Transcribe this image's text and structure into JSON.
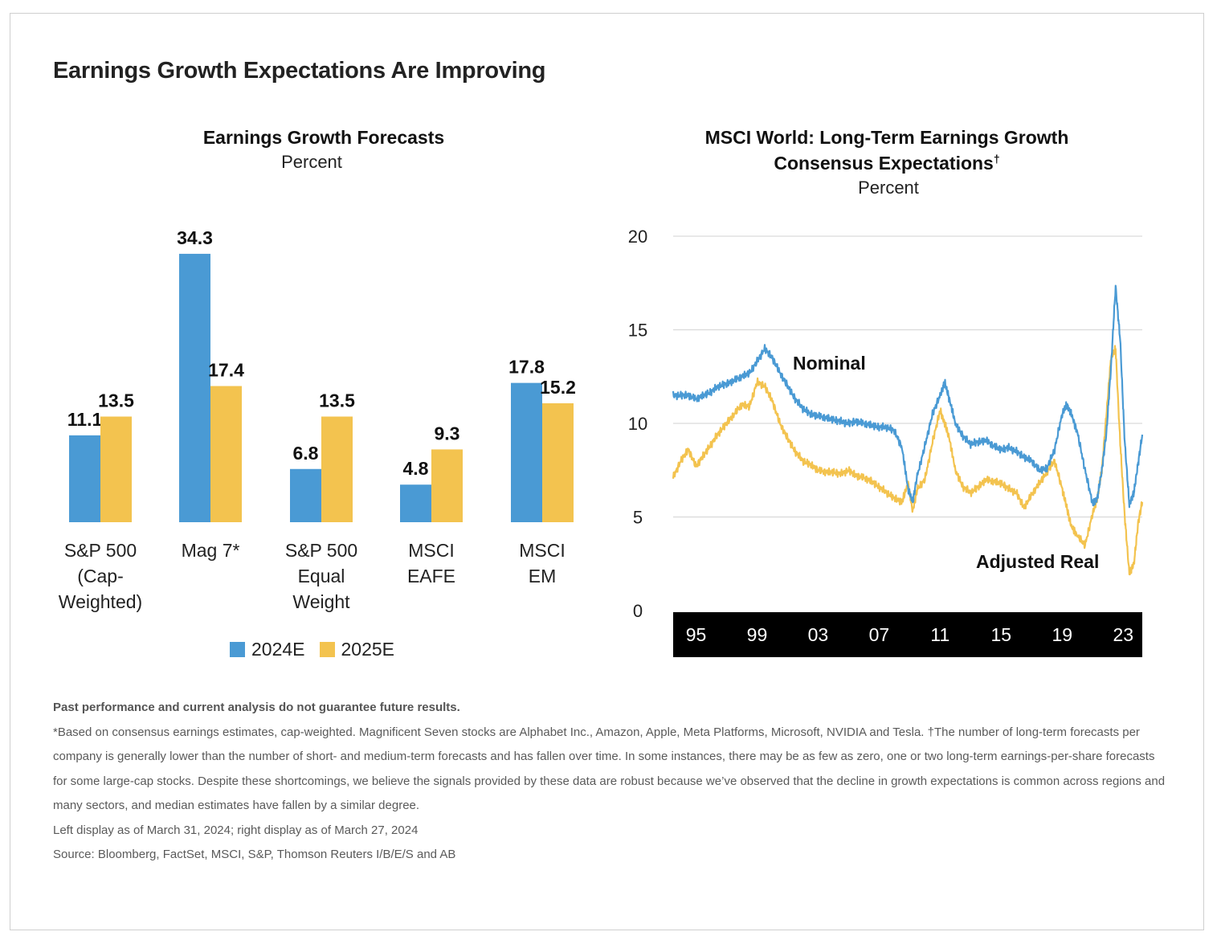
{
  "page": {
    "title": "Earnings Growth Expectations Are Improving"
  },
  "left_chart_header": {
    "title": "Earnings Growth Forecasts",
    "subtitle": "Percent"
  },
  "right_chart_header": {
    "title_line1": "MSCI World: Long-Term Earnings Growth",
    "title_line2": "Consensus Expectations",
    "title_mark": "†",
    "subtitle": "Percent"
  },
  "legend": {
    "series1": "2024E",
    "series2": "2025E"
  },
  "colors": {
    "blue": "#4a9ad4",
    "yellow": "#f3c34f",
    "axis_band": "#000000",
    "grid": "#d9d9d9"
  },
  "notes": {
    "disclaimer": "Past performance and current analysis do not guarantee future results.",
    "footnote": "*Based on consensus earnings estimates, cap-weighted. Magnificent Seven stocks are Alphabet Inc., Amazon, Apple, Meta Platforms, Microsoft, NVIDIA and Tesla. †The number of long-term forecasts per company is generally lower than the number of short- and medium-term forecasts and has fallen over time. In some instances, there may be as few as zero, one or two long-term earnings-per-share forecasts for some large-cap stocks. Despite these shortcomings, we believe the signals provided by these data are robust because we’ve observed that the decline in growth expectations is common across regions and many sectors, and median estimates have fallen by a similar degree.",
    "dates": "Left display as of March 31, 2024; right display as of March 27, 2024",
    "source": "Source: Bloomberg, FactSet, MSCI, S&P, Thomson Reuters I/B/E/S and AB"
  },
  "chart_data": [
    {
      "type": "bar",
      "title": "Earnings Growth Forecasts",
      "subtitle": "Percent",
      "categories": [
        [
          "S&P 500",
          "(Cap-",
          "Weighted)"
        ],
        [
          "Mag 7*"
        ],
        [
          "S&P 500",
          "Equal",
          "Weight"
        ],
        [
          "MSCI",
          "EAFE"
        ],
        [
          "MSCI",
          "EM"
        ]
      ],
      "series": [
        {
          "name": "2024E",
          "values": [
            11.1,
            34.3,
            6.8,
            4.8,
            17.8
          ],
          "labels": [
            "11.1",
            "34.3",
            "6.8",
            "4.8",
            "17.8"
          ]
        },
        {
          "name": "2025E",
          "values": [
            13.5,
            17.4,
            13.5,
            9.3,
            15.2
          ],
          "labels": [
            "13.5",
            "17.4",
            "13.5",
            "9.3",
            "15.2"
          ]
        }
      ],
      "legend": "bottom"
    },
    {
      "type": "line",
      "title": "MSCI World: Long-Term Earnings Growth Consensus Expectations†",
      "subtitle": "Percent",
      "x_ticks": [
        1995,
        1999,
        2003,
        2007,
        2011,
        2015,
        2019,
        2023
      ],
      "x_tick_labels": [
        "95",
        "99",
        "03",
        "07",
        "11",
        "15",
        "19",
        "23"
      ],
      "xlim": [
        1993.5,
        2024.25
      ],
      "y_ticks": [
        0,
        5,
        10,
        15,
        20
      ],
      "ylim": [
        0,
        20
      ],
      "grid": true,
      "series": [
        {
          "name": "Nominal",
          "x": [
            1993.5,
            1994.0,
            1994.5,
            1995.0,
            1995.5,
            1996.0,
            1996.5,
            1997.0,
            1997.5,
            1998.0,
            1998.5,
            1999.0,
            1999.5,
            2000.0,
            2000.5,
            2001.0,
            2001.5,
            2002.0,
            2002.5,
            2003.0,
            2003.5,
            2004.0,
            2004.5,
            2005.0,
            2005.5,
            2006.0,
            2006.5,
            2007.0,
            2007.5,
            2008.0,
            2008.5,
            2008.9,
            2009.2,
            2009.5,
            2010.0,
            2010.5,
            2011.0,
            2011.3,
            2011.6,
            2012.0,
            2012.5,
            2013.0,
            2013.5,
            2014.0,
            2014.5,
            2015.0,
            2015.5,
            2016.0,
            2016.5,
            2017.0,
            2017.5,
            2018.0,
            2018.5,
            2019.0,
            2019.3,
            2019.6,
            2020.0,
            2020.5,
            2021.0,
            2021.3,
            2021.6,
            2021.9,
            2022.2,
            2022.5,
            2022.8,
            2023.1,
            2023.4,
            2023.7,
            2024.0,
            2024.25
          ],
          "values": [
            11.5,
            11.5,
            11.5,
            11.3,
            11.5,
            11.7,
            12.0,
            12.1,
            12.3,
            12.5,
            12.7,
            13.3,
            14.0,
            13.5,
            12.7,
            12.0,
            11.3,
            10.8,
            10.5,
            10.4,
            10.3,
            10.2,
            10.1,
            10.0,
            10.1,
            10.0,
            9.9,
            9.8,
            9.8,
            9.6,
            8.7,
            6.5,
            5.8,
            7.2,
            8.8,
            10.5,
            11.5,
            12.2,
            11.3,
            10.0,
            9.3,
            8.9,
            9.0,
            9.1,
            8.8,
            8.6,
            8.7,
            8.5,
            8.2,
            8.0,
            7.5,
            7.6,
            8.6,
            10.5,
            11.0,
            10.5,
            9.5,
            7.5,
            5.7,
            6.0,
            7.5,
            9.5,
            13.0,
            17.3,
            14.5,
            9.0,
            5.7,
            6.3,
            8.0,
            9.4
          ]
        },
        {
          "name": "Adjusted Real",
          "x": [
            1993.5,
            1994.0,
            1994.5,
            1995.0,
            1995.5,
            1996.0,
            1996.5,
            1997.0,
            1997.5,
            1998.0,
            1998.5,
            1999.0,
            1999.5,
            2000.0,
            2000.5,
            2001.0,
            2001.5,
            2002.0,
            2002.5,
            2003.0,
            2003.5,
            2004.0,
            2004.5,
            2005.0,
            2005.5,
            2006.0,
            2006.5,
            2007.0,
            2007.5,
            2008.0,
            2008.5,
            2008.9,
            2009.2,
            2009.5,
            2010.0,
            2010.5,
            2011.0,
            2011.3,
            2011.6,
            2012.0,
            2012.5,
            2013.0,
            2013.5,
            2014.0,
            2014.5,
            2015.0,
            2015.5,
            2016.0,
            2016.5,
            2017.0,
            2017.5,
            2018.0,
            2018.5,
            2019.0,
            2019.3,
            2019.6,
            2020.0,
            2020.5,
            2021.0,
            2021.3,
            2021.6,
            2021.9,
            2022.2,
            2022.5,
            2022.8,
            2023.1,
            2023.4,
            2023.7,
            2024.0,
            2024.25
          ],
          "values": [
            7.1,
            8.0,
            8.6,
            7.7,
            8.3,
            8.9,
            9.5,
            10.0,
            10.5,
            11.0,
            10.9,
            12.2,
            12.0,
            11.2,
            10.0,
            9.2,
            8.5,
            8.0,
            7.8,
            7.5,
            7.4,
            7.4,
            7.3,
            7.5,
            7.2,
            7.1,
            6.9,
            6.6,
            6.3,
            6.0,
            5.8,
            6.8,
            5.3,
            6.5,
            7.0,
            9.0,
            10.7,
            10.0,
            9.2,
            7.5,
            6.6,
            6.3,
            6.6,
            7.0,
            6.9,
            6.8,
            6.5,
            6.3,
            5.5,
            6.2,
            6.8,
            7.4,
            8.0,
            6.5,
            5.5,
            4.5,
            4.0,
            3.5,
            5.2,
            6.0,
            7.5,
            10.5,
            13.5,
            14.0,
            9.0,
            5.0,
            2.0,
            2.5,
            4.8,
            5.8
          ]
        }
      ],
      "annotations": [
        "Nominal",
        "Adjusted Real"
      ]
    }
  ]
}
